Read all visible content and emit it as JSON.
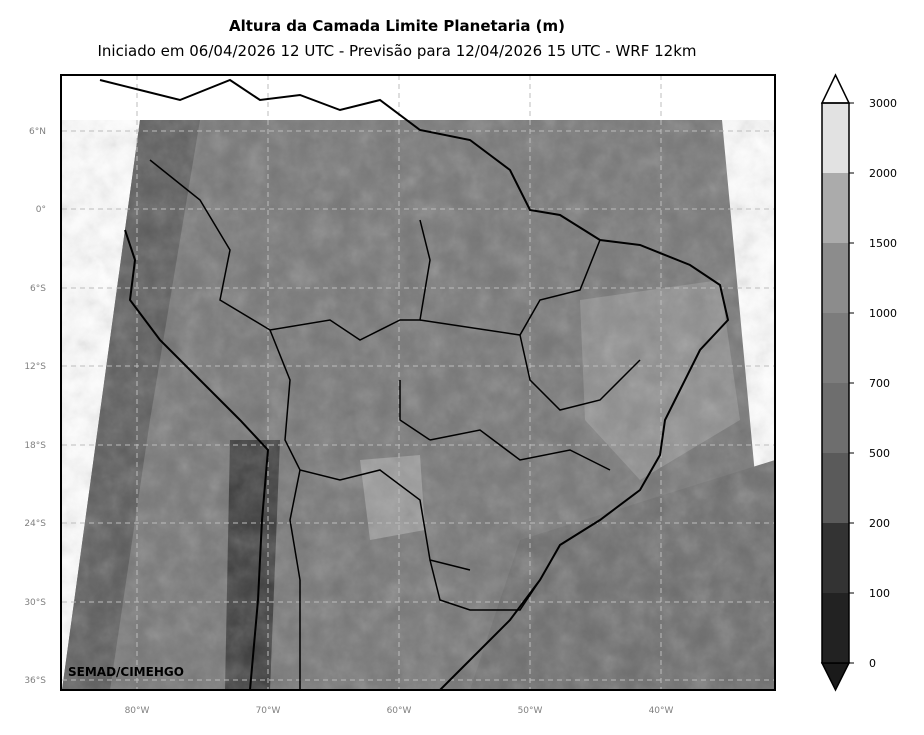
{
  "title": "Altura da Camada Limite Planetaria (m)",
  "subtitle": "Iniciado em 06/04/2026 12 UTC - Previsão para 12/04/2026 15 UTC - WRF 12km",
  "credit": "SEMAD/CIMEHGO",
  "map": {
    "lat_labels": [
      "6°N",
      "0°",
      "6°S",
      "12°S",
      "18°S",
      "24°S",
      "30°S",
      "36°S"
    ],
    "lon_labels": [
      "80°W",
      "70°W",
      "60°W",
      "50°W",
      "40°W"
    ],
    "graticule": "dashed"
  },
  "colorbar": {
    "ticks": [
      "0",
      "100",
      "200",
      "500",
      "700",
      "1000",
      "1500",
      "2000",
      "3000"
    ],
    "colors": [
      "#1a1a1a",
      "#222222",
      "#333333",
      "#5a5a5a",
      "#6e6e6e",
      "#7c7c7c",
      "#8c8c8c",
      "#ababab",
      "#e2e2e2",
      "#ffffff"
    ],
    "extend": "both"
  }
}
